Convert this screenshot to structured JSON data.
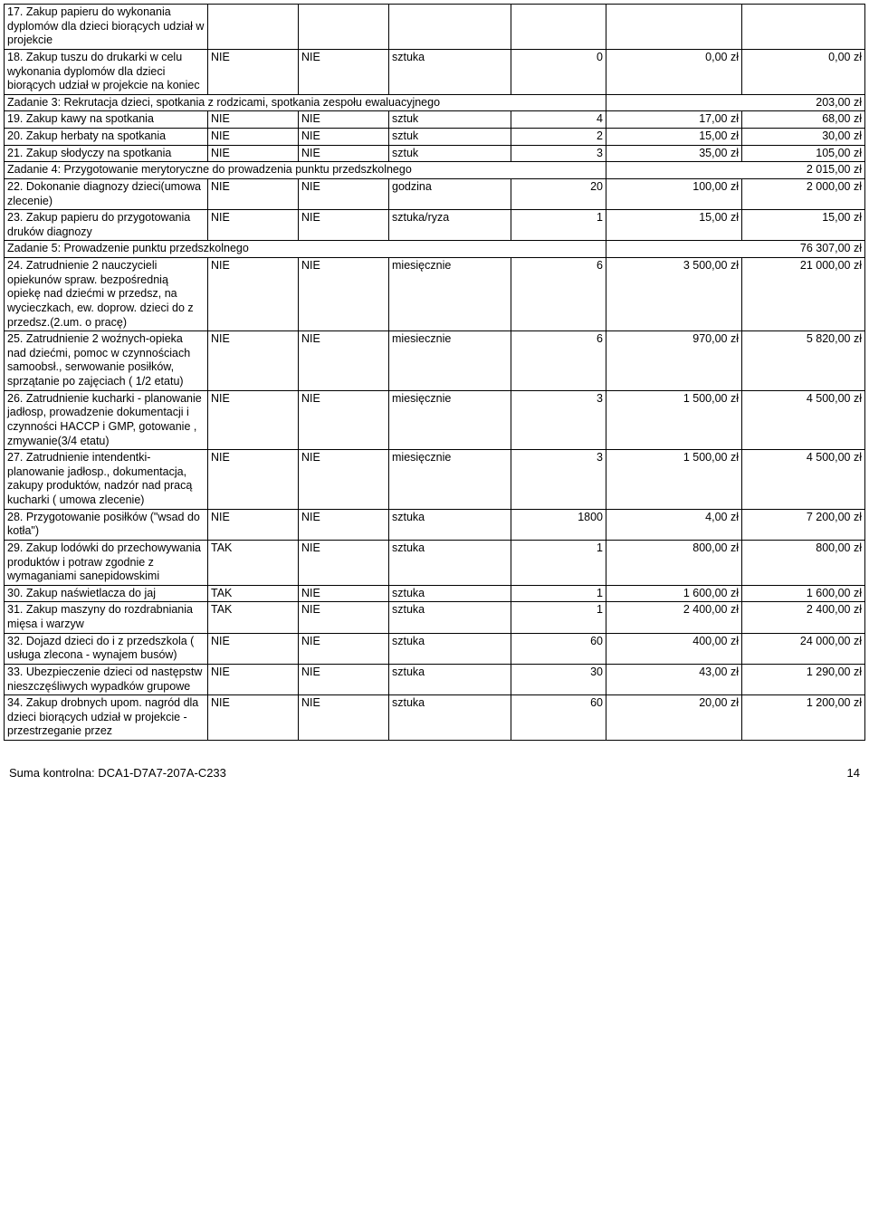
{
  "rows": [
    {
      "type": "item",
      "desc": "17. Zakup papieru do wykonania dyplomów dla dzieci biorących udział w projekcie",
      "a": "",
      "b": "",
      "unit": "",
      "qty": "",
      "price": "",
      "total": ""
    },
    {
      "type": "item",
      "desc": "18. Zakup tuszu do drukarki w celu wykonania dyplomów dla dzieci biorących udział w projekcie na koniec",
      "a": "NIE",
      "b": "NIE",
      "unit": "sztuka",
      "qty": "0",
      "price": "0,00 zł",
      "total": "0,00 zł"
    },
    {
      "type": "section",
      "desc": "Zadanie 3: Rekrutacja dzieci, spotkania z rodzicami, spotkania zespołu ewaluacyjnego",
      "total": "203,00 zł"
    },
    {
      "type": "item",
      "desc": "19. Zakup kawy na spotkania",
      "a": "NIE",
      "b": "NIE",
      "unit": "sztuk",
      "qty": "4",
      "price": "17,00 zł",
      "total": "68,00 zł"
    },
    {
      "type": "item",
      "desc": "20. Zakup herbaty na spotkania",
      "a": "NIE",
      "b": "NIE",
      "unit": "sztuk",
      "qty": "2",
      "price": "15,00 zł",
      "total": "30,00 zł"
    },
    {
      "type": "item",
      "desc": "21. Zakup słodyczy na spotkania",
      "a": "NIE",
      "b": "NIE",
      "unit": "sztuk",
      "qty": "3",
      "price": "35,00 zł",
      "total": "105,00 zł"
    },
    {
      "type": "section",
      "desc": "Zadanie 4: Przygotowanie merytoryczne do prowadzenia punktu przedszkolnego",
      "total": "2 015,00 zł"
    },
    {
      "type": "item",
      "desc": "22. Dokonanie diagnozy dzieci(umowa zlecenie)",
      "a": "NIE",
      "b": "NIE",
      "unit": "godzina",
      "qty": "20",
      "price": "100,00 zł",
      "total": "2 000,00 zł"
    },
    {
      "type": "item",
      "desc": "23. Zakup papieru do przygotowania druków diagnozy",
      "a": "NIE",
      "b": "NIE",
      "unit": "sztuka/ryza",
      "qty": "1",
      "price": "15,00 zł",
      "total": "15,00 zł"
    },
    {
      "type": "section",
      "desc": "Zadanie 5: Prowadzenie punktu przedszkolnego",
      "total": "76 307,00 zł"
    },
    {
      "type": "item",
      "desc": "24. Zatrudnienie 2 nauczycieli opiekunów spraw. bezpośrednią opiekę nad dziećmi w przedsz, na wycieczkach, ew. doprow. dzieci do z przedsz.(2.um. o pracę)",
      "a": "NIE",
      "b": "NIE",
      "unit": "miesięcznie",
      "qty": "6",
      "price": "3 500,00 zł",
      "total": "21 000,00 zł"
    },
    {
      "type": "item",
      "desc": "25. Zatrudnienie 2 woźnych-opieka nad dziećmi, pomoc w czynnościach samoobsł., serwowanie posiłków, sprzątanie po zajęciach ( 1/2 etatu)",
      "a": "NIE",
      "b": "NIE",
      "unit": "miesiecznie",
      "qty": "6",
      "price": "970,00 zł",
      "total": "5 820,00 zł"
    },
    {
      "type": "item",
      "desc": "26. Zatrudnienie kucharki - planowanie jadłosp, prowadzenie dokumentacji i czynności HACCP i GMP, gotowanie , zmywanie(3/4 etatu)",
      "a": "NIE",
      "b": "NIE",
      "unit": "miesięcznie",
      "qty": "3",
      "price": "1 500,00 zł",
      "total": "4 500,00 zł"
    },
    {
      "type": "item",
      "desc": "27. Zatrudnienie intendentki-planowanie jadłosp., dokumentacja, zakupy produktów, nadzór nad pracą kucharki ( umowa zlecenie)",
      "a": "NIE",
      "b": "NIE",
      "unit": "miesięcznie",
      "qty": "3",
      "price": "1 500,00 zł",
      "total": "4 500,00 zł"
    },
    {
      "type": "item",
      "desc": "28. Przygotowanie posiłków (\"wsad do kotła\")",
      "a": "NIE",
      "b": "NIE",
      "unit": "sztuka",
      "qty": "1800",
      "price": "4,00 zł",
      "total": "7 200,00 zł"
    },
    {
      "type": "item",
      "desc": "29. Zakup lodówki do przechowywania produktów i potraw zgodnie z wymaganiami sanepidowskimi",
      "a": "TAK",
      "b": "NIE",
      "unit": "sztuka",
      "qty": "1",
      "price": "800,00 zł",
      "total": "800,00 zł"
    },
    {
      "type": "item",
      "desc": "30. Zakup naświetlacza do jaj",
      "a": "TAK",
      "b": "NIE",
      "unit": "sztuka",
      "qty": "1",
      "price": "1 600,00 zł",
      "total": "1 600,00 zł"
    },
    {
      "type": "item",
      "desc": "31. Zakup maszyny do rozdrabniania mięsa i warzyw",
      "a": "TAK",
      "b": "NIE",
      "unit": "sztuka",
      "qty": "1",
      "price": "2 400,00 zł",
      "total": "2 400,00 zł"
    },
    {
      "type": "item",
      "desc": "32. Dojazd dzieci do i z przedszkola ( usługa zlecona - wynajem busów)",
      "a": "NIE",
      "b": "NIE",
      "unit": "sztuka",
      "qty": "60",
      "price": "400,00 zł",
      "total": "24 000,00 zł"
    },
    {
      "type": "item",
      "desc": "33. Ubezpieczenie dzieci od następstw nieszczęśliwych wypadków grupowe",
      "a": "NIE",
      "b": "NIE",
      "unit": "sztuka",
      "qty": "30",
      "price": "43,00 zł",
      "total": "1 290,00 zł"
    },
    {
      "type": "item",
      "desc": "34. Zakup drobnych upom. nagród dla dzieci biorących udział w projekcie - przestrzeganie przez",
      "a": "NIE",
      "b": "NIE",
      "unit": "sztuka",
      "qty": "60",
      "price": "20,00 zł",
      "total": "1 200,00 zł"
    }
  ],
  "footer": {
    "checksum_label": "Suma kontrolna: DCA1-D7A7-207A-C233",
    "page_number": "14"
  }
}
